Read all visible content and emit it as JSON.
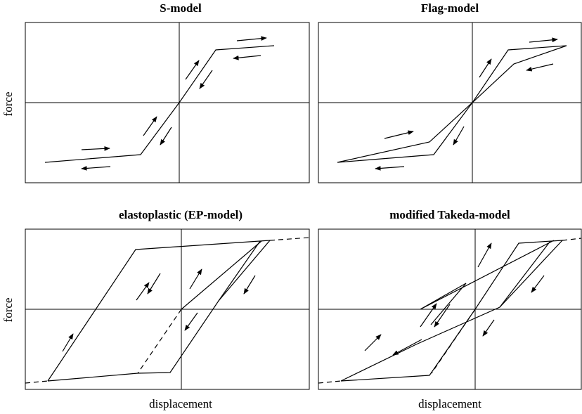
{
  "panels": [
    {
      "title": "S-model",
      "ylabel": "force",
      "xlabel": ""
    },
    {
      "title": "Flag-model",
      "ylabel": "",
      "xlabel": ""
    },
    {
      "title": "elastoplastic (EP-model)",
      "ylabel": "force",
      "xlabel": "displacement"
    },
    {
      "title": "modified Takeda-model",
      "ylabel": "",
      "xlabel": "displacement"
    }
  ]
}
